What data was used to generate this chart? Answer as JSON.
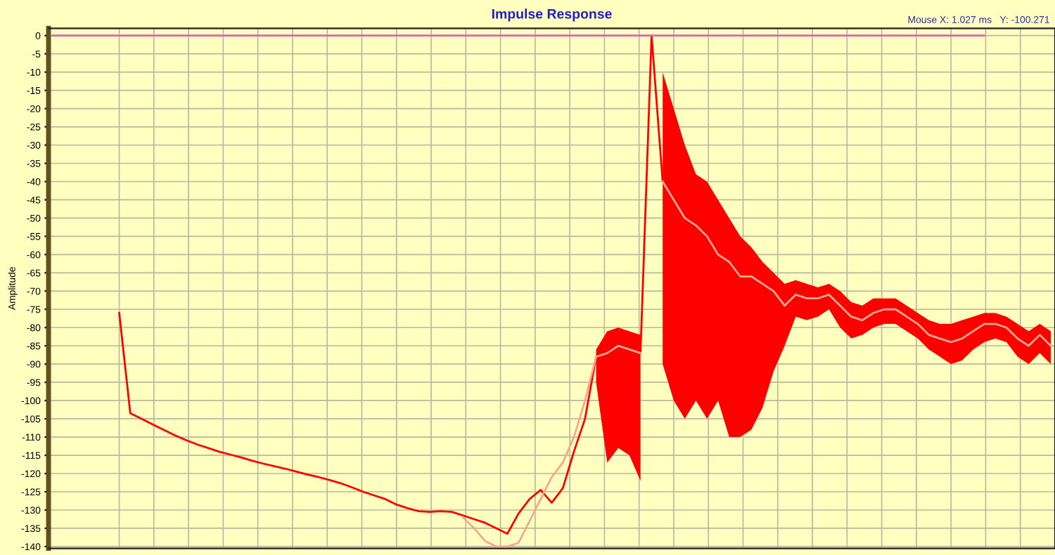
{
  "chart_data": {
    "type": "line",
    "title": "Impulse Response",
    "ylabel": "Amplitude",
    "annotations": [
      "Mouse X: 1.027 ms   Y: -100.271"
    ],
    "categories": [
      null,
      null,
      null,
      null,
      null,
      null,
      null,
      null,
      null,
      null,
      null,
      null,
      null,
      null,
      null,
      null,
      null,
      null,
      null,
      null,
      null,
      null,
      null,
      null,
      null,
      null,
      null,
      null,
      null,
      null,
      null,
      null,
      null,
      null,
      null,
      null,
      null,
      null,
      null,
      null,
      null,
      null,
      null,
      null,
      null,
      null,
      null,
      null,
      null,
      null,
      null,
      null,
      null,
      null,
      null,
      null,
      null,
      null,
      null,
      null,
      null,
      null,
      null,
      null,
      null,
      null,
      null,
      null,
      null,
      null,
      null,
      null,
      null,
      null,
      null,
      null,
      null,
      null,
      null,
      null,
      null,
      null,
      null,
      null,
      null,
      null,
      null,
      null,
      null,
      null,
      null
    ],
    "series": [
      {
        "color": "#ff0000",
        "values": [
          null,
          null,
          null,
          null,
          null,
          null,
          -76,
          -103.5,
          -105,
          -106.5,
          -108,
          -109.5,
          -110.8,
          -112,
          -113,
          -114,
          -114.8,
          -115.6,
          -116.5,
          -117.3,
          -118,
          -118.7,
          -119.5,
          -120.3,
          -121,
          -121.8,
          -122.7,
          -123.8,
          -125,
          -126,
          -127,
          -128.5,
          -129.5,
          -130.3,
          -130.5,
          -130.3,
          -130.5,
          -131.5,
          -132.5,
          -133.5,
          -135,
          -136.5,
          -131,
          -127,
          -124.5,
          -128,
          -124,
          -114,
          -105,
          -88,
          -87,
          -85,
          -86,
          -87,
          0,
          -40,
          -45,
          -50,
          -52,
          -55,
          -60,
          -62,
          -66,
          -66,
          -68,
          -70,
          -74,
          -71,
          -72,
          -72,
          -71,
          -74,
          -77,
          -78,
          -76,
          -75,
          -75,
          -77,
          -79,
          -82,
          -83,
          -84,
          -83,
          -81,
          -79,
          -79,
          -80,
          -83,
          -85,
          -82,
          -85
        ],
        "lower": [
          null,
          null,
          null,
          null,
          null,
          null,
          null,
          null,
          null,
          null,
          null,
          null,
          null,
          null,
          null,
          null,
          null,
          null,
          null,
          null,
          null,
          null,
          null,
          null,
          null,
          null,
          null,
          null,
          null,
          null,
          null,
          null,
          null,
          null,
          null,
          null,
          null,
          null,
          null,
          null,
          null,
          null,
          null,
          null,
          null,
          null,
          null,
          null,
          null,
          -95,
          -117,
          -113,
          -115,
          -122,
          null,
          -90,
          -100,
          -105,
          -100,
          -105,
          -100,
          -110,
          -110,
          -108,
          -102,
          -92,
          -85,
          -77,
          -78,
          -77,
          -75,
          -80,
          -83,
          -82,
          -80,
          -79,
          -79,
          -81,
          -83,
          -86,
          -88,
          -90,
          -89,
          -86,
          -84,
          -83,
          -84,
          -88,
          -90,
          -87,
          -90
        ],
        "upper": [
          null,
          null,
          null,
          null,
          null,
          null,
          null,
          null,
          null,
          null,
          null,
          null,
          null,
          null,
          null,
          null,
          null,
          null,
          null,
          null,
          null,
          null,
          null,
          null,
          null,
          null,
          null,
          null,
          null,
          null,
          null,
          null,
          null,
          null,
          null,
          null,
          null,
          null,
          null,
          null,
          null,
          null,
          null,
          null,
          null,
          null,
          null,
          null,
          null,
          -86,
          -81,
          -80,
          -81,
          -82,
          null,
          -10,
          -20,
          -30,
          -38,
          -40,
          -45,
          -50,
          -55,
          -58,
          -62,
          -65,
          -68,
          -67,
          -68,
          -69,
          -68,
          -70,
          -73,
          -74,
          -72,
          -72,
          -72,
          -74,
          -76,
          -78,
          -79,
          -79,
          -78,
          -77,
          -76,
          -76,
          -77,
          -79,
          -81,
          -79,
          -81
        ]
      },
      {
        "color": "#f4a890",
        "values": [
          null,
          null,
          null,
          null,
          null,
          null,
          null,
          null,
          null,
          null,
          null,
          null,
          null,
          null,
          null,
          null,
          null,
          null,
          null,
          null,
          null,
          null,
          null,
          null,
          null,
          null,
          null,
          null,
          null,
          null,
          null,
          null,
          null,
          null,
          null,
          null,
          null,
          -132,
          -135,
          -138.5,
          -140,
          -140,
          -139,
          -133,
          -127,
          -121,
          -117,
          -110,
          -100,
          -88,
          -87,
          -85,
          -86,
          -87,
          null,
          -40,
          -45,
          -50,
          -52,
          -55,
          -60,
          -62,
          -66,
          -66,
          -68,
          -70,
          -74,
          -71,
          -72,
          -72,
          -71,
          -74,
          -77,
          -78,
          -76,
          -75,
          -75,
          -77,
          -79,
          -82,
          -83,
          -84,
          -83,
          -81,
          -79,
          -79,
          -80,
          -83,
          -85,
          -82,
          -85
        ]
      },
      {
        "color": "#e060c0",
        "values": [
          0,
          0,
          0,
          0,
          0,
          0,
          0,
          0,
          0,
          0,
          0,
          0,
          0,
          0,
          0,
          0,
          0,
          0,
          0,
          0,
          0,
          0,
          0,
          0,
          0,
          0,
          0,
          0,
          0,
          0,
          0,
          0,
          0,
          0,
          0,
          0,
          0,
          0,
          0,
          0,
          0,
          0,
          0,
          0,
          0,
          0,
          0,
          0,
          0,
          0,
          0,
          0,
          0,
          0,
          0,
          0,
          0,
          0,
          0,
          0,
          0,
          0,
          0,
          0,
          0,
          0,
          0,
          0,
          0,
          0,
          0,
          0,
          0,
          0,
          0,
          0,
          0,
          0,
          0,
          0,
          0,
          0,
          0,
          0,
          0,
          null,
          null,
          null,
          null,
          null,
          null
        ]
      }
    ],
    "ylim": [
      -140.5,
      2
    ],
    "yticks": [
      0,
      -5,
      -10,
      -15,
      -20,
      -25,
      -30,
      -35,
      -40,
      -45,
      -50,
      -55,
      -60,
      -65,
      -70,
      -75,
      -80,
      -85,
      -90,
      -95,
      -100,
      -105,
      -110,
      -115,
      -120,
      -125,
      -130,
      -135,
      -140
    ],
    "grid": true,
    "marker": "none",
    "line_style": "solid",
    "legend": false,
    "tick_labels": "y"
  }
}
